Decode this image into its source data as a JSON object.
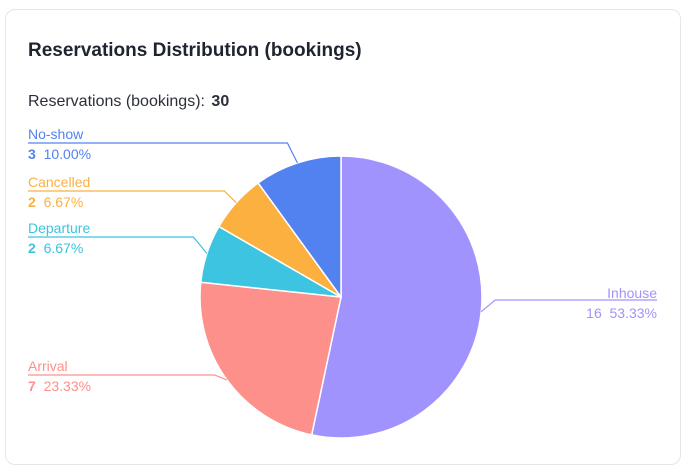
{
  "card": {
    "title": "Reservations Distribution (bookings)"
  },
  "summary": {
    "label": "Reservations (bookings):",
    "value": "30"
  },
  "chart_data": {
    "type": "pie",
    "title": "Reservations Distribution (bookings)",
    "total": 30,
    "slices": [
      {
        "name": "Inhouse",
        "value": 16,
        "percent": "53.33%",
        "color": "#a193fd",
        "side": "right",
        "bold_value": false
      },
      {
        "name": "Arrival",
        "value": 7,
        "percent": "23.33%",
        "color": "#fd908a",
        "side": "left",
        "bold_value": true
      },
      {
        "name": "Departure",
        "value": 2,
        "percent": "6.67%",
        "color": "#3dc4e0",
        "side": "left",
        "bold_value": true
      },
      {
        "name": "Cancelled",
        "value": 2,
        "percent": "6.67%",
        "color": "#fbb040",
        "side": "left",
        "bold_value": true
      },
      {
        "name": "No-show",
        "value": 3,
        "percent": "10.00%",
        "color": "#5282f0",
        "side": "left",
        "bold_value": true
      }
    ]
  }
}
